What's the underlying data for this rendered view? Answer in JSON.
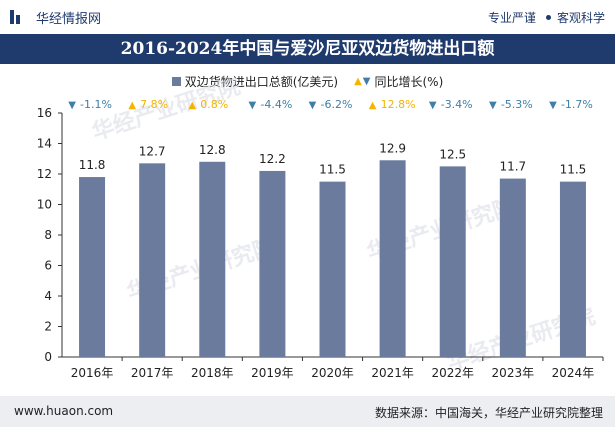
{
  "header": {
    "brand": "华经情报网",
    "tagline_left": "专业严谨",
    "tagline_right": "客观科学"
  },
  "title": "2016-2024年中国与爱沙尼亚双边货物进出口额",
  "legend": {
    "bar_label": "双边货物进出口总额(亿美元)",
    "growth_label": "同比增长(%)"
  },
  "footer": {
    "url": "www.huaon.com",
    "source": "数据来源：中国海关，华经产业研究院整理"
  },
  "watermark": "华经产业研究院",
  "colors": {
    "bar": "#6b7b9e",
    "title_bg": "#1f3a6d",
    "up": "#f5b400",
    "down": "#3f7ea6"
  },
  "chart_data": {
    "type": "bar",
    "title": "2016-2024年中国与爱沙尼亚双边货物进出口额",
    "categories": [
      "2016年",
      "2017年",
      "2018年",
      "2019年",
      "2020年",
      "2021年",
      "2022年",
      "2023年",
      "2024年"
    ],
    "series": [
      {
        "name": "双边货物进出口总额(亿美元)",
        "values": [
          11.8,
          12.7,
          12.8,
          12.2,
          11.5,
          12.9,
          12.5,
          11.7,
          11.5
        ]
      }
    ],
    "growth": {
      "name": "同比增长(%)",
      "values": [
        -1.1,
        7.8,
        0.8,
        -4.4,
        -6.2,
        12.8,
        -3.4,
        -5.3,
        -1.7
      ],
      "labels": [
        "-1.1%",
        "7.8%",
        "0.8%",
        "-4.4%",
        "-6.2%",
        "12.8%",
        "-3.4%",
        "-5.3%",
        "-1.7%"
      ]
    },
    "ylim": [
      0,
      16
    ],
    "yticks": [
      0,
      2,
      4,
      6,
      8,
      10,
      12,
      14,
      16
    ],
    "grid": false,
    "legend_position": "top-center"
  }
}
